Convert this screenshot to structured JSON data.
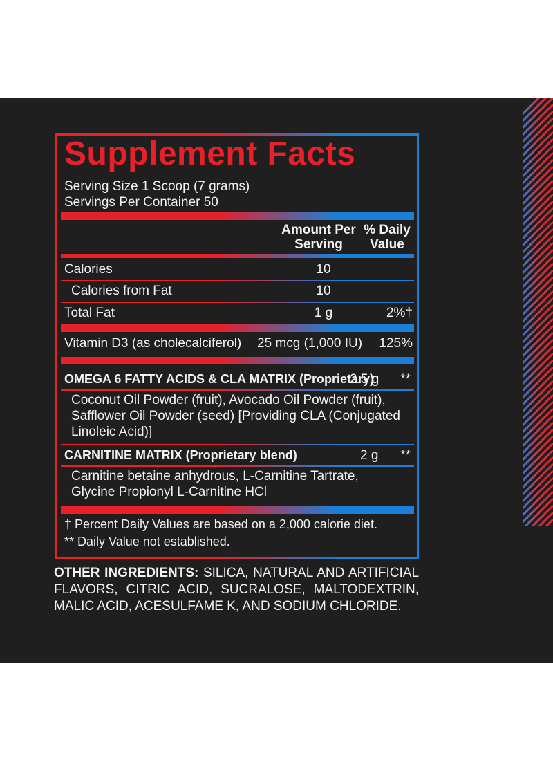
{
  "title": "Supplement Facts",
  "serving_size": "Serving Size 1 Scoop (7 grams)",
  "servings_per_container": "Servings Per Container 50",
  "header": {
    "amount_line1": "Amount Per",
    "amount_line2": "Serving",
    "dv_line1": "% Daily",
    "dv_line2": "Value"
  },
  "rows": {
    "calories": {
      "label": "Calories",
      "amount": "10",
      "dv": ""
    },
    "calories_fat": {
      "label": "Calories from Fat",
      "amount": "10",
      "dv": ""
    },
    "total_fat": {
      "label": "Total Fat",
      "amount": "1 g",
      "dv": "2%†"
    },
    "vitamin_d3": {
      "label": "Vitamin D3 (as cholecalciferol)",
      "amount": "25 mcg (1,000 IU)",
      "dv": "125%"
    },
    "omega": {
      "label": "OMEGA 6 FATTY ACIDS & CLA MATRIX (Proprietary)",
      "amount": "2.5 g",
      "dv": "**"
    },
    "omega_ingredients": {
      "line1": "Coconut Oil Powder (fruit), Avocado Oil Powder (fruit),",
      "line2": "Safflower Oil Powder (seed) [Providing CLA (Conjugated",
      "line3": "Linoleic Acid)]"
    },
    "carnitine": {
      "label": "CARNITINE MATRIX (Proprietary blend)",
      "amount": "2 g",
      "dv": "**"
    },
    "carnitine_ingredients": {
      "line1": "Carnitine betaine anhydrous, L-Carnitine Tartrate,",
      "line2": "Glycine Propionyl L-Carnitine HCl"
    }
  },
  "footnotes": {
    "percent": "† Percent Daily Values are based on a 2,000 calorie diet.",
    "not_established": "** Daily Value not established."
  },
  "other_ingredients": {
    "label": "OTHER INGREDIENTS:",
    "text": " SILICA, NATURAL AND ARTIFICIAL FLAVORS, CITRIC ACID, SUCRALOSE, MALTODEXTRIN, MALIC ACID, ACESULFAME K, AND SODIUM CHLORIDE."
  },
  "colors": {
    "red": "#e8202a",
    "blue": "#1c7fd6",
    "panel": "#1f1f1f",
    "text": "#f2f2f2"
  }
}
